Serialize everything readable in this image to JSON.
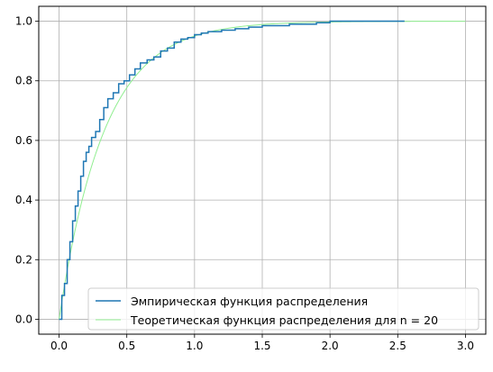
{
  "chart_data": {
    "type": "line",
    "grid": true,
    "legend_placement": "lower-right",
    "xlim": [
      -0.15,
      3.15
    ],
    "ylim": [
      -0.05,
      1.05
    ],
    "x_ticks": [
      0.0,
      0.5,
      1.0,
      1.5,
      2.0,
      2.5,
      3.0
    ],
    "x_tick_labels": [
      "0.0",
      "0.5",
      "1.0",
      "1.5",
      "2.0",
      "2.5",
      "3.0"
    ],
    "y_ticks": [
      0.0,
      0.2,
      0.4,
      0.6,
      0.8,
      1.0
    ],
    "y_tick_labels": [
      "0.0",
      "0.2",
      "0.4",
      "0.6",
      "0.8",
      "1.0"
    ],
    "series": [
      {
        "name": "Эмпирическая функция распределения",
        "color": "#1f77b4",
        "style": "step",
        "x": [
          0.0,
          0.02,
          0.04,
          0.06,
          0.08,
          0.1,
          0.12,
          0.14,
          0.16,
          0.18,
          0.2,
          0.22,
          0.24,
          0.25,
          0.27,
          0.3,
          0.33,
          0.36,
          0.4,
          0.44,
          0.48,
          0.52,
          0.56,
          0.6,
          0.65,
          0.7,
          0.75,
          0.8,
          0.85,
          0.9,
          0.95,
          1.0,
          1.05,
          1.1,
          1.2,
          1.3,
          1.4,
          1.5,
          1.6,
          1.7,
          1.8,
          1.85,
          1.9,
          2.0,
          2.55
        ],
        "y": [
          0.0,
          0.08,
          0.12,
          0.2,
          0.26,
          0.33,
          0.38,
          0.43,
          0.48,
          0.53,
          0.56,
          0.58,
          0.61,
          0.61,
          0.63,
          0.67,
          0.71,
          0.74,
          0.76,
          0.79,
          0.8,
          0.82,
          0.84,
          0.86,
          0.87,
          0.88,
          0.9,
          0.91,
          0.93,
          0.94,
          0.945,
          0.955,
          0.96,
          0.965,
          0.97,
          0.975,
          0.98,
          0.985,
          0.985,
          0.99,
          0.99,
          0.99,
          0.995,
          1.0,
          1.0
        ]
      },
      {
        "name": "Теоретическая функция распределения для n = 20",
        "color": "#90ee90",
        "style": "line",
        "formula": "1 - exp(-3x)",
        "x_range": [
          0.0,
          3.0
        ]
      }
    ]
  }
}
